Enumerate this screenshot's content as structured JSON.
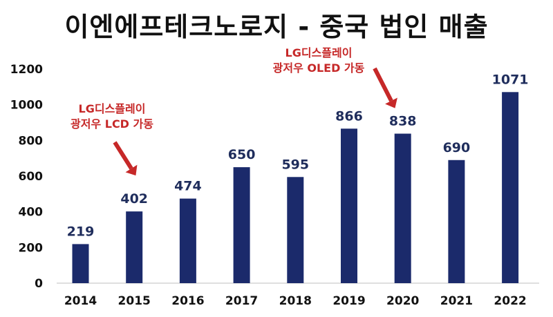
{
  "chart_data": {
    "type": "bar",
    "title": "이엔에프테크노로지 - 중국 법인 매출",
    "categories": [
      "2014",
      "2015",
      "2016",
      "2017",
      "2018",
      "2019",
      "2020",
      "2021",
      "2022"
    ],
    "values": [
      219,
      402,
      474,
      650,
      595,
      866,
      838,
      690,
      1071
    ],
    "y_ticks": [
      "0",
      "200",
      "400",
      "600",
      "800",
      "1000",
      "1200"
    ],
    "ylim": [
      0,
      1200
    ],
    "grid": false,
    "legend": "none",
    "bar_color": "#1b2a6b",
    "annotations": [
      {
        "lines": [
          "LG디스플레이",
          "광저우 LCD 가동"
        ],
        "target_category": "2015",
        "color": "#c62828"
      },
      {
        "lines": [
          "LG디스플레이",
          "광저우 OLED 가동"
        ],
        "target_category": "2020",
        "color": "#c62828"
      }
    ]
  }
}
